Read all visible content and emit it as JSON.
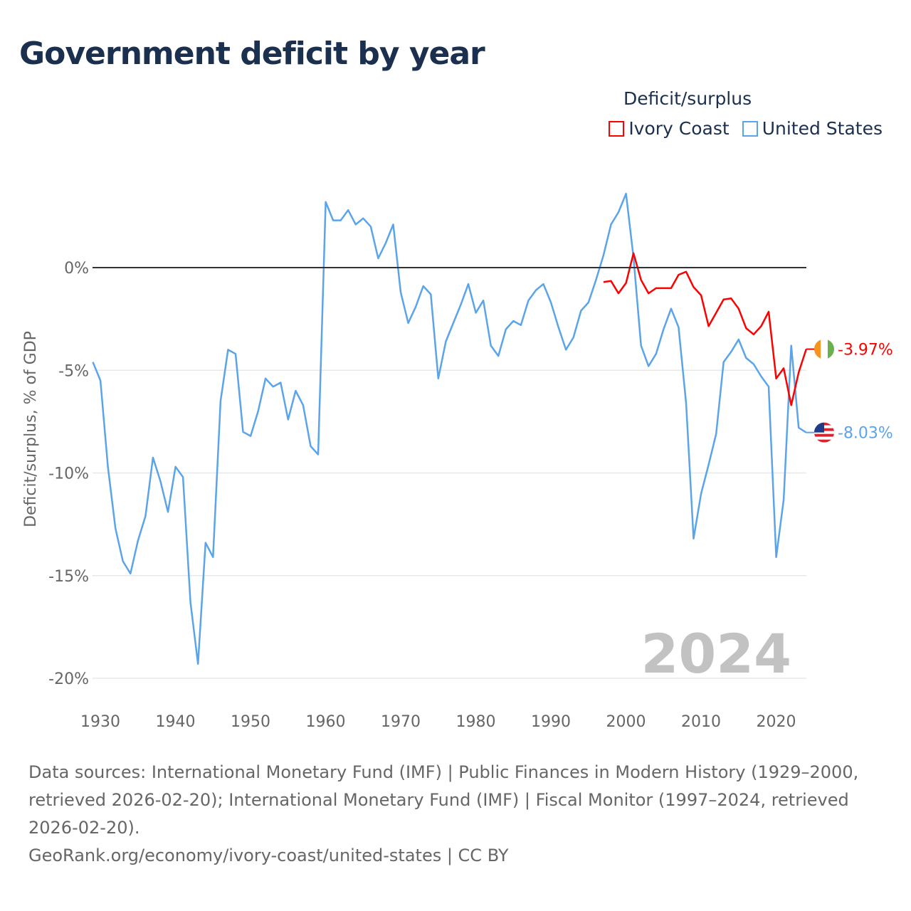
{
  "title": "Government deficit by year",
  "chart_data": {
    "type": "line",
    "title": "Government deficit by year",
    "ylabel": "Deficit/surplus, % of GDP",
    "xlabel": "",
    "legend_title": "Deficit/surplus",
    "legend_position": "top-right",
    "xlim": [
      1929,
      2024
    ],
    "ylim": [
      -21,
      4
    ],
    "x_ticks": [
      1930,
      1940,
      1950,
      1960,
      1970,
      1980,
      1990,
      2000,
      2010,
      2020
    ],
    "y_ticks": [
      {
        "v": 0,
        "label": "0%"
      },
      {
        "v": -5,
        "label": "-5%"
      },
      {
        "v": -10,
        "label": "-10%"
      },
      {
        "v": -15,
        "label": "-15%"
      },
      {
        "v": -20,
        "label": "-20%"
      }
    ],
    "year_label": "2024",
    "series": [
      {
        "name": "Ivory Coast",
        "color": "#ff0000",
        "end_label": "-3.97%",
        "flag": "ivory-coast",
        "start": 1997,
        "values": [
          -0.7,
          -0.65,
          -1.25,
          -0.75,
          0.7,
          -0.6,
          -1.25,
          -1.0,
          -1.0,
          -1.0,
          -0.35,
          -0.2,
          -0.95,
          -1.35,
          -2.85,
          -2.2,
          -1.55,
          -1.5,
          -2.0,
          -2.95,
          -3.25,
          -2.85,
          -2.15,
          -5.4,
          -4.9,
          -6.7,
          -5.1,
          -3.97
        ]
      },
      {
        "name": "United States",
        "color": "#5ba4ea",
        "end_label": "-8.03%",
        "flag": "united-states",
        "start": 1929,
        "values": [
          -4.6,
          -5.5,
          -9.7,
          -12.7,
          -14.3,
          -14.9,
          -13.3,
          -12.1,
          -9.25,
          -10.4,
          -11.9,
          -9.7,
          -10.2,
          -16.3,
          -19.3,
          -13.4,
          -14.1,
          -6.5,
          -4.0,
          -4.2,
          -8.0,
          -8.2,
          -7.0,
          -5.4,
          -5.8,
          -5.6,
          -7.4,
          -6.0,
          -6.7,
          -8.7,
          -9.1,
          3.2,
          2.3,
          2.3,
          2.8,
          2.1,
          2.4,
          2.0,
          0.45,
          1.2,
          2.1,
          -1.2,
          -2.7,
          -1.9,
          -0.9,
          -1.3,
          -5.4,
          -3.6,
          -2.7,
          -1.8,
          -0.8,
          -2.2,
          -1.6,
          -3.8,
          -4.3,
          -3.0,
          -2.6,
          -2.8,
          -1.6,
          -1.1,
          -0.8,
          -1.7,
          -2.9,
          -4.0,
          -3.4,
          -2.1,
          -1.7,
          -0.6,
          0.6,
          2.1,
          2.7,
          3.6,
          0.5,
          -3.8,
          -4.8,
          -4.2,
          -3.0,
          -2.0,
          -2.9,
          -6.6,
          -13.2,
          -11.0,
          -9.6,
          -8.1,
          -4.6,
          -4.1,
          -3.5,
          -4.4,
          -4.7,
          -5.3,
          -5.8,
          -14.1,
          -11.3,
          -3.8,
          -7.8,
          -8.03
        ]
      }
    ]
  },
  "footer": {
    "sources": "Data sources: International Monetary Fund (IMF) | Public Finances in Modern History (1929–2000, retrieved 2026-02-20); International Monetary Fund (IMF) | Fiscal Monitor (1997–2024, retrieved 2026-02-20).",
    "credit": "GeoRank.org/economy/ivory-coast/united-states | CC BY"
  }
}
